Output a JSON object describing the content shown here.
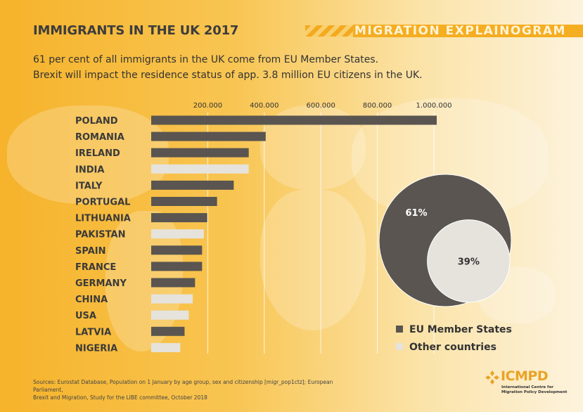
{
  "header": {
    "title": "IMMIGRANTS IN THE UK 2017",
    "brand_banner": "MIGRATION EXPLAINOGRAM"
  },
  "subtitle": {
    "line1": "61 per cent of all immigrants in the UK come from EU Member States.",
    "line2": "Brexit will impact the residence status of app. 3.8 million EU citizens in the UK."
  },
  "colors": {
    "eu": "#5a5550",
    "other": "#e6e3dd",
    "accent": "#f5ad21"
  },
  "chart_data": [
    {
      "type": "bar",
      "orientation": "horizontal",
      "categories": [
        "POLAND",
        "ROMANIA",
        "IRELAND",
        "INDIA",
        "ITALY",
        "PORTUGAL",
        "LITHUANIA",
        "PAKISTAN",
        "SPAIN",
        "FRANCE",
        "GERMANY",
        "CHINA",
        "USA",
        "LATVIA",
        "NIGERIA"
      ],
      "values": [
        1010000,
        405000,
        345000,
        345000,
        292000,
        233000,
        198000,
        186000,
        180000,
        180000,
        155000,
        147000,
        133000,
        118000,
        103000
      ],
      "group": [
        "EU",
        "EU",
        "EU",
        "Other",
        "EU",
        "EU",
        "EU",
        "Other",
        "EU",
        "EU",
        "EU",
        "Other",
        "Other",
        "EU",
        "Other"
      ],
      "xticks": [
        200000,
        400000,
        600000,
        800000,
        1000000
      ],
      "xtick_labels": [
        "200.000",
        "400.000",
        "600.000",
        "800.000",
        "1.000.000"
      ],
      "xlim": [
        0,
        1000000
      ],
      "grid": true,
      "tick_position": "top"
    },
    {
      "type": "pie",
      "style": "nested-circles",
      "slices": [
        {
          "label": "EU Member States",
          "value": 61,
          "display": "61%"
        },
        {
          "label": "Other countries",
          "value": 39,
          "display": "39%"
        }
      ],
      "legend_position": "bottom"
    }
  ],
  "legend": {
    "eu_label": "EU Member States",
    "other_label": "Other countries"
  },
  "footer": {
    "sources_line1": "Sources: Eurostat Database, Population on 1 January by age group, sex and citizenship [migr_pop1ctz]; European Parliament,",
    "sources_line2": "Brexit and Migration, Study for the LIBE committee, October 2018"
  },
  "logo": {
    "name": "ICMPD",
    "line1": "International Centre for",
    "line2": "Migration Policy Development"
  }
}
